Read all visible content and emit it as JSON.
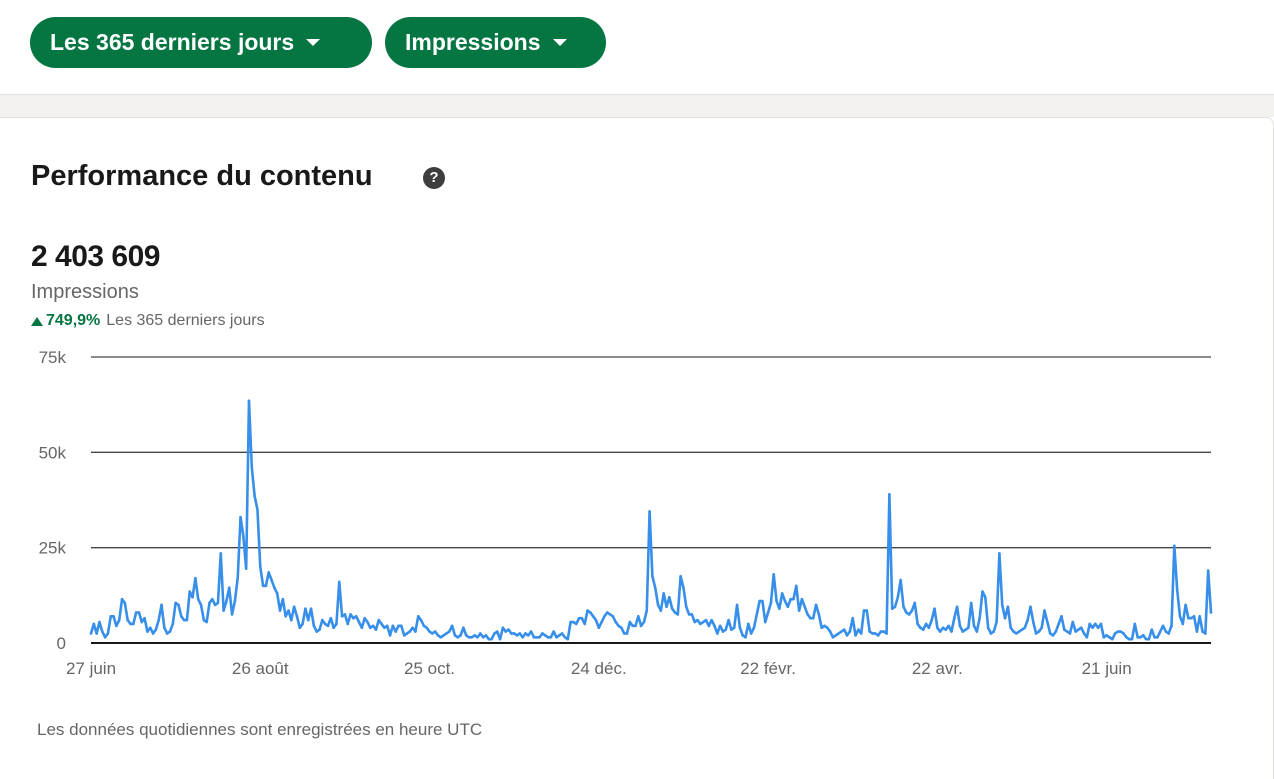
{
  "filters": {
    "range_label": "Les 365 derniers jours",
    "metric_label": "Impressions"
  },
  "card": {
    "title": "Performance du contenu",
    "help_icon": "help-circle-icon",
    "help_symbol": "?",
    "total": "2 403 609",
    "metric": "Impressions",
    "change": "749,9%",
    "change_period": "Les 365 derniers jours",
    "footnote": "Les données quotidiennes sont enregistrées en heure UTC"
  },
  "colors": {
    "brand_green": "#057642",
    "line_blue": "#378fe9"
  },
  "chart_data": {
    "type": "line",
    "title": "",
    "xlabel": "",
    "ylabel": "",
    "ylim": [
      0,
      75000
    ],
    "yticks": [
      {
        "value": 75000,
        "label": "75k"
      },
      {
        "value": 50000,
        "label": "50k"
      },
      {
        "value": 25000,
        "label": "25k"
      },
      {
        "value": 0,
        "label": "0"
      }
    ],
    "xticks": [
      {
        "day": 0,
        "label": "27 juin"
      },
      {
        "day": 60,
        "label": "26 août"
      },
      {
        "day": 120,
        "label": "25 oct."
      },
      {
        "day": 180,
        "label": "24 déc."
      },
      {
        "day": 240,
        "label": "22 févr."
      },
      {
        "day": 300,
        "label": "22 avr."
      },
      {
        "day": 360,
        "label": "21 juin"
      }
    ],
    "grid": true,
    "series": [
      {
        "values": [
          2500,
          5000,
          2500,
          5500,
          3000,
          1500,
          2500,
          7000,
          7000,
          4500,
          6000,
          11500,
          10500,
          6000,
          5000,
          5000,
          8000,
          8000,
          5500,
          6500,
          3000,
          4000,
          2500,
          3500,
          6000,
          10000,
          4000,
          2500,
          3000,
          5000,
          10500,
          10000,
          7000,
          6000,
          6000,
          13500,
          12000,
          17000,
          11500,
          10000,
          6000,
          5500,
          10500,
          11500,
          10000,
          10500,
          23500,
          8500,
          11000,
          14500,
          7500,
          11000,
          17000,
          33000,
          28000,
          19500,
          63500,
          46000,
          38500,
          35000,
          20000,
          15000,
          15000,
          18500,
          16500,
          14500,
          13000,
          8500,
          11500,
          7000,
          8500,
          6000,
          9500,
          7000,
          4000,
          5000,
          9000,
          6000,
          9000,
          4500,
          3000,
          3500,
          6000,
          5000,
          4500,
          6500,
          4000,
          5000,
          16000,
          7000,
          7500,
          5000,
          7500,
          6500,
          7000,
          5500,
          4000,
          6500,
          5500,
          4000,
          4500,
          3500,
          6000,
          5000,
          4000,
          4500,
          2000,
          4500,
          3000,
          4500,
          4500,
          2000,
          2500,
          3000,
          4000,
          3000,
          7000,
          6000,
          4500,
          4000,
          3000,
          2500,
          3000,
          2000,
          1500,
          2000,
          2500,
          3000,
          4500,
          2000,
          1500,
          2000,
          4000,
          2000,
          1500,
          1500,
          2000,
          1500,
          2500,
          1500,
          2000,
          1000,
          1000,
          2500,
          3000,
          1000,
          4000,
          3000,
          3500,
          2500,
          2500,
          2000,
          2500,
          1500,
          2500,
          2000,
          3000,
          1500,
          1500,
          1500,
          2500,
          2000,
          1500,
          1500,
          3000,
          1500,
          2000,
          2500,
          1500,
          1000,
          5500,
          5500,
          5000,
          6500,
          6500,
          5000,
          8500,
          8000,
          7000,
          6000,
          4000,
          5500,
          7000,
          8000,
          7500,
          7000,
          5500,
          4500,
          4000,
          2500,
          2500,
          5500,
          4500,
          4500,
          7000,
          4500,
          5500,
          8500,
          34500,
          17500,
          14500,
          10000,
          8500,
          13000,
          9500,
          12000,
          9000,
          8000,
          7500,
          17500,
          14500,
          9500,
          7500,
          7500,
          5500,
          6000,
          5000,
          5500,
          6000,
          4500,
          6000,
          4500,
          2500,
          4500,
          3000,
          3500,
          6000,
          3500,
          4000,
          10000,
          4000,
          2000,
          1500,
          5000,
          2500,
          4000,
          7500,
          11000,
          11000,
          5500,
          8000,
          10500,
          18000,
          11000,
          9000,
          13000,
          11000,
          9500,
          11500,
          11500,
          15000,
          8500,
          11500,
          9500,
          7500,
          6500,
          6500,
          10000,
          7500,
          4000,
          4500,
          4000,
          3000,
          1500,
          2000,
          2500,
          3000,
          3500,
          2000,
          3000,
          6500,
          2000,
          3500,
          2500,
          8500,
          8500,
          3000,
          2500,
          2500,
          2000,
          3000,
          3000,
          2500,
          39000,
          9000,
          9500,
          12000,
          16500,
          9500,
          8000,
          7500,
          8500,
          10500,
          5000,
          4000,
          3500,
          5000,
          4000,
          6000,
          9000,
          4000,
          3000,
          4000,
          3500,
          4500,
          3000,
          6500,
          9500,
          4500,
          3000,
          3500,
          4000,
          10500,
          4500,
          3000,
          6500,
          13500,
          12000,
          4000,
          2500,
          3000,
          5500,
          23500,
          10000,
          6500,
          9500,
          4000,
          3000,
          2500,
          3000,
          3500,
          4000,
          6000,
          9500,
          5500,
          2500,
          3000,
          4000,
          8500,
          5500,
          2500,
          2000,
          3000,
          5000,
          7000,
          3500,
          3000,
          2500,
          5500,
          3000,
          3500,
          4000,
          2500,
          1500,
          5000,
          4000,
          5000,
          4000,
          5000,
          1500,
          2000,
          1500,
          1000,
          2500,
          3000,
          3000,
          2500,
          1500,
          1000,
          1000,
          5000,
          1500,
          1500,
          2000,
          1000,
          1000,
          3500,
          1500,
          1500,
          3000,
          4500,
          3000,
          2500,
          4500,
          25500,
          14000,
          7000,
          5000,
          10000,
          6500,
          6500,
          7000,
          3000,
          7000,
          3000,
          2500,
          19000,
          8000
        ]
      }
    ]
  }
}
